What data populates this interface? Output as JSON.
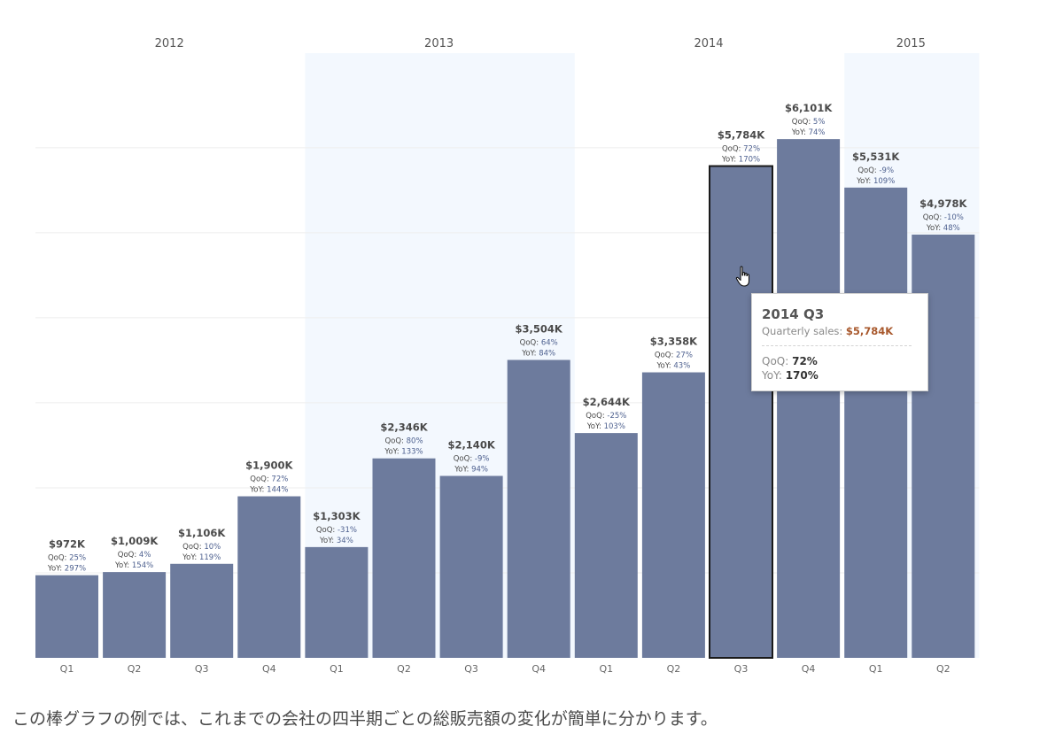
{
  "chart_data": {
    "type": "bar",
    "years": [
      {
        "label": "2012",
        "quarters": 4
      },
      {
        "label": "2013",
        "quarters": 4
      },
      {
        "label": "2014",
        "quarters": 4
      },
      {
        "label": "2015",
        "quarters": 2
      }
    ],
    "categories": [
      "Q1",
      "Q2",
      "Q3",
      "Q4",
      "Q1",
      "Q2",
      "Q3",
      "Q4",
      "Q1",
      "Q2",
      "Q3",
      "Q4",
      "Q1",
      "Q2"
    ],
    "values": [
      972,
      1009,
      1106,
      1900,
      1303,
      2346,
      2140,
      3504,
      2644,
      3358,
      5784,
      6101,
      5531,
      4978
    ],
    "value_labels": [
      "$972K",
      "$1,009K",
      "$1,106K",
      "$1,900K",
      "$1,303K",
      "$2,346K",
      "$2,140K",
      "$3,504K",
      "$2,644K",
      "$3,358K",
      "$5,784K",
      "$6,101K",
      "$5,531K",
      "$4,978K"
    ],
    "qoq_labels": [
      "25%",
      "4%",
      "10%",
      "72%",
      "-31%",
      "80%",
      "-9%",
      "64%",
      "-25%",
      "27%",
      "72%",
      "5%",
      "-9%",
      "-10%"
    ],
    "yoy_labels": [
      "297%",
      "154%",
      "119%",
      "144%",
      "34%",
      "133%",
      "94%",
      "84%",
      "103%",
      "43%",
      "170%",
      "74%",
      "109%",
      "48%"
    ],
    "qoq_prefix": "QoQ:",
    "yoy_prefix": "YoY:",
    "ylim": [
      0,
      6800
    ],
    "grid": true,
    "highlighted_index": 10,
    "colors": {
      "bar": "#6d7b9d",
      "band": "#f3f8fe",
      "highlight_border": "#1a1a1a",
      "grid": "#eeeeee"
    }
  },
  "tooltip": {
    "title": "2014 Q3",
    "sales_label": "Quarterly sales:",
    "sales_value": "$5,784K",
    "qoq_label": "QoQ:",
    "qoq_value": "72%",
    "yoy_label": "YoY:",
    "yoy_value": "170%"
  },
  "cursor_icon": "hand-pointer-icon",
  "caption": "この棒グラフの例では、これまでの会社の四半期ごとの総販売額の変化が簡単に分かります。"
}
